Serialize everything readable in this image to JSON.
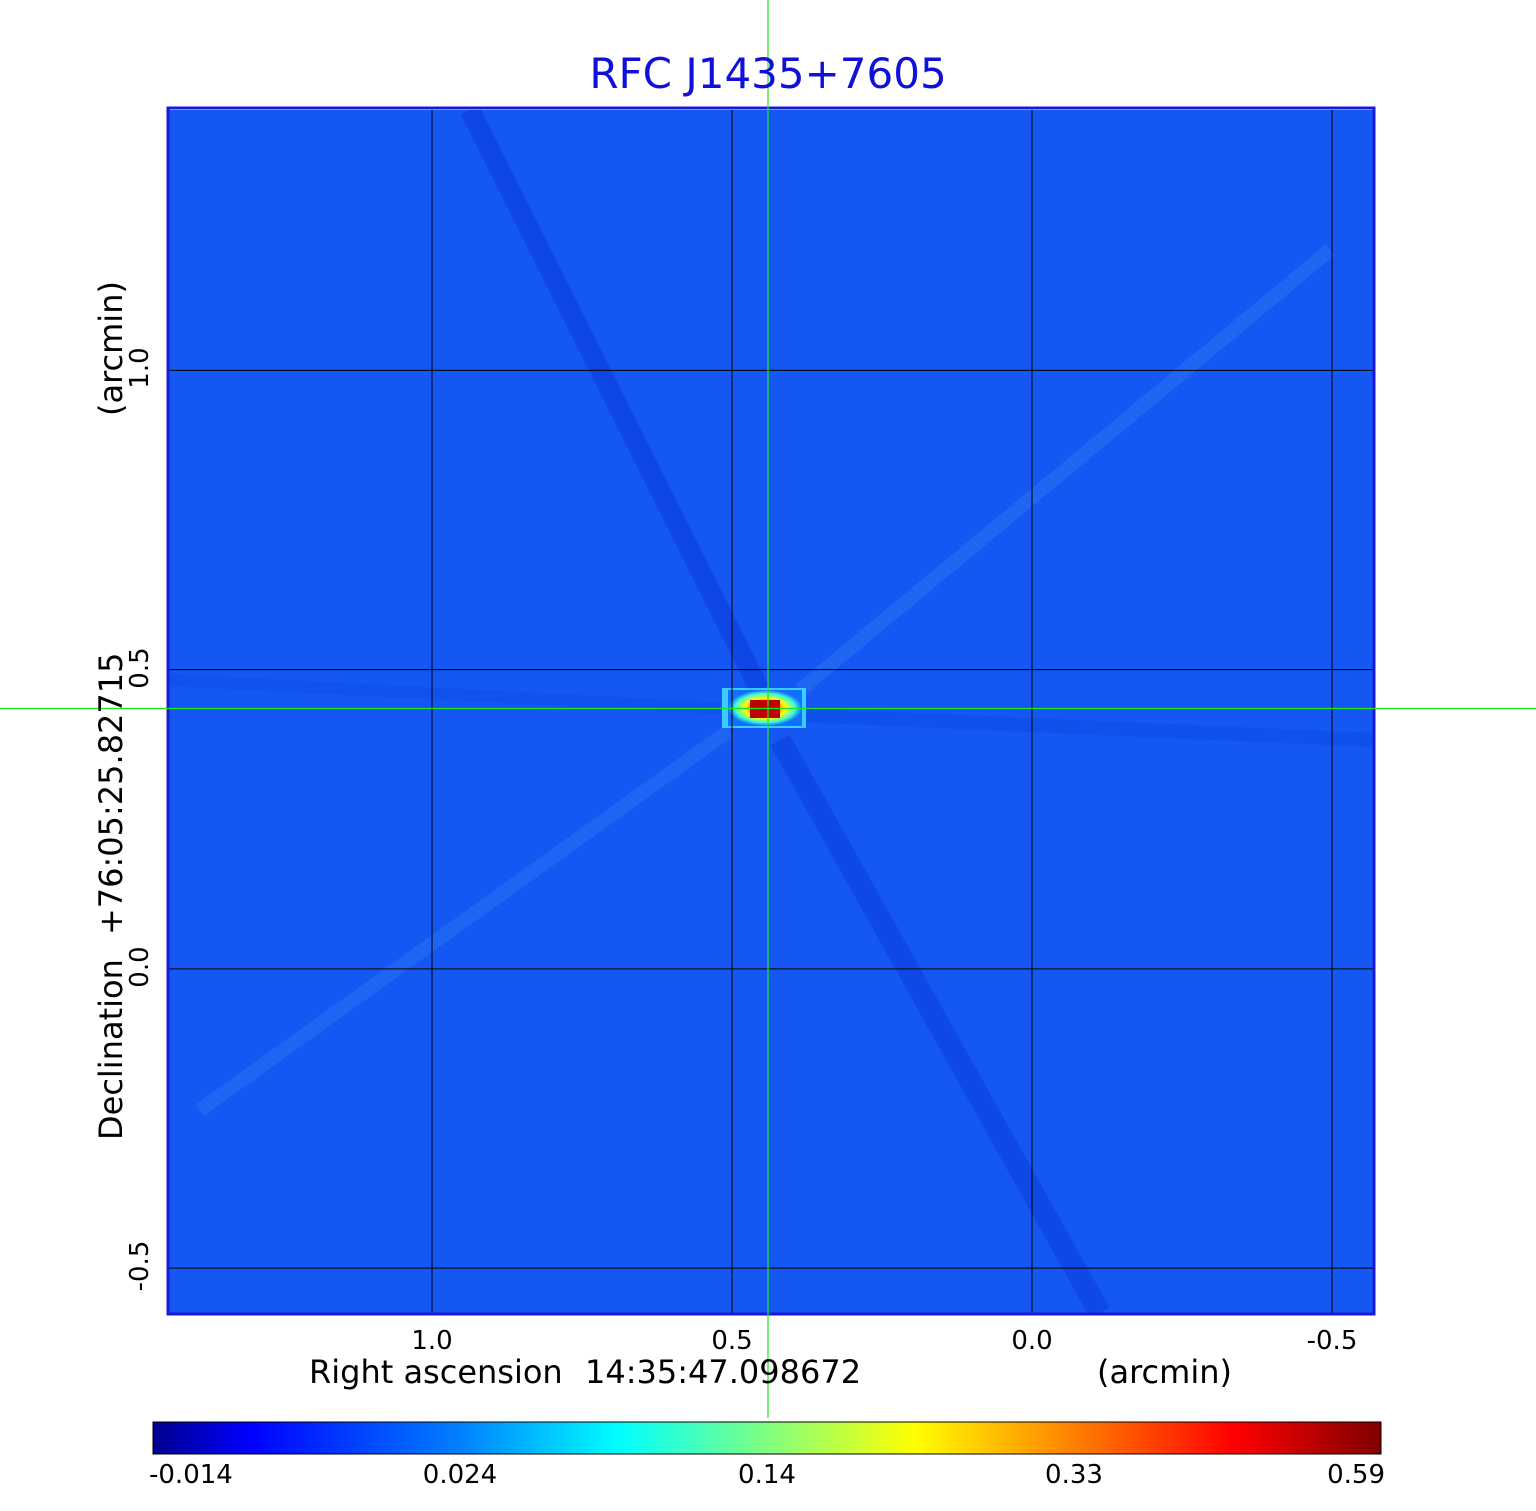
{
  "chart_data": {
    "type": "heatmap",
    "title": "RFC J1435+7605",
    "colormap": "jet",
    "xlabel": {
      "name": "Right ascension",
      "reference": "14:35:47.098672",
      "units": "(arcmin)"
    },
    "ylabel": {
      "name": "Declination",
      "reference": "+76:05:25.82715",
      "units": "(arcmin)"
    },
    "x_ticks": [
      "1.0",
      "0.5",
      "0.0",
      "-0.5"
    ],
    "x_tick_values": [
      1.0,
      0.5,
      0.0,
      -0.5
    ],
    "y_ticks": [
      "1.0",
      "0.5",
      "0.0",
      "-0.5"
    ],
    "y_tick_values": [
      1.0,
      0.5,
      0.0,
      -0.5
    ],
    "xlim": [
      1.44,
      -0.57
    ],
    "ylim": [
      -0.575,
      1.435
    ],
    "grid": true,
    "crosshair": {
      "x": 0.44,
      "y": 0.435
    },
    "peak": {
      "x": 0.44,
      "y": 0.435,
      "value": 0.59
    },
    "colorbar": {
      "ticks": [
        "-0.014",
        "0.024",
        "0.14",
        "0.33",
        "0.59"
      ],
      "tick_values": [
        -0.014,
        0.024,
        0.14,
        0.33,
        0.59
      ],
      "colors": [
        "#00008f",
        "#0000ff",
        "#0080ff",
        "#00ffff",
        "#80ff80",
        "#ffff00",
        "#ff8000",
        "#ff0000",
        "#800000"
      ]
    }
  }
}
